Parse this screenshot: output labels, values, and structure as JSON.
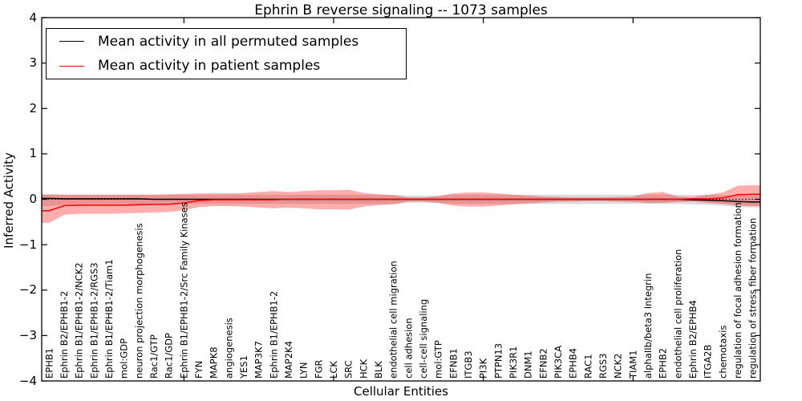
{
  "chart_data": {
    "type": "line",
    "title": "Ephrin B reverse signaling -- 1073 samples",
    "xlabel": "Cellular Entities",
    "ylabel": "Inferred Activity",
    "ylim": [
      -4,
      4
    ],
    "grid": false,
    "legend_position": "upper left",
    "yticks": [
      4,
      3,
      2,
      1,
      0,
      -1,
      -2,
      -3,
      -4
    ],
    "ytick_labels": [
      "4",
      "3",
      "2",
      "1",
      "0",
      "−1",
      "−2",
      "−3",
      "−4"
    ],
    "x_major_tick_indices": [
      9,
      19,
      29,
      39
    ],
    "zero_reference_line": 0,
    "categories": [
      "EPHB1",
      "Ephrin B2/EPHB1-2",
      "Ephrin B1/EPHB1-2/NCK2",
      "Ephrin B1/EPHB1-2/RGS3",
      "Ephrin B1/EPHB1-2/Tiam1",
      "mol:GDP",
      "neuron projection morphogenesis",
      "Rac1/GTP",
      "Rac1/GDP",
      "Ephrin B1/EPHB1-2/Src Family Kinases",
      "FYN",
      "MAPK8",
      "angiogenesis",
      "YES1",
      "MAP3K7",
      "Ephrin B1/EPHB1-2",
      "MAP2K4",
      "LYN",
      "FGR",
      "LCK",
      "SRC",
      "HCK",
      "BLK",
      "endothelial cell migration",
      "cell adhesion",
      "cell-cell signaling",
      "mol:GTP",
      "EFNB1",
      "ITGB3",
      "PI3K",
      "PTPN13",
      "PIK3R1",
      "DNM1",
      "EFNB2",
      "PIK3CA",
      "EPHB4",
      "RAC1",
      "RGS3",
      "NCK2",
      "TIAM1",
      "alphaIIb/beta3 Integrin",
      "EPHB2",
      "endothelial cell proliferation",
      "Ephrin B2/EPHB4",
      "ITGA2B",
      "chemotaxis",
      "regulation of focal adhesion formation",
      "regulation of stress fiber formation"
    ],
    "series": [
      {
        "id": "permuted",
        "name": "Mean activity in all permuted samples",
        "color": "#000000",
        "band_color": "#999999",
        "band_opacity": 0.35,
        "values": [
          0.02,
          0.01,
          0.01,
          0.01,
          0.01,
          0.01,
          0.01,
          0.0,
          0.0,
          0.0,
          0.0,
          0.0,
          0.0,
          0.0,
          0.0,
          0.0,
          0.0,
          0.0,
          0.0,
          0.0,
          0.0,
          0.0,
          0.0,
          0.0,
          0.0,
          0.0,
          0.0,
          0.0,
          0.0,
          0.0,
          0.0,
          0.0,
          0.0,
          0.0,
          0.0,
          0.0,
          0.0,
          0.0,
          0.0,
          0.0,
          0.0,
          0.0,
          0.0,
          -0.01,
          -0.02,
          -0.03,
          -0.05,
          -0.06
        ],
        "upper": [
          0.12,
          0.1,
          0.1,
          0.1,
          0.1,
          0.1,
          0.1,
          0.1,
          0.1,
          0.1,
          0.1,
          0.1,
          0.1,
          0.1,
          0.1,
          0.1,
          0.1,
          0.1,
          0.1,
          0.1,
          0.1,
          0.1,
          0.1,
          0.1,
          0.08,
          0.08,
          0.08,
          0.1,
          0.1,
          0.1,
          0.1,
          0.1,
          0.1,
          0.1,
          0.1,
          0.1,
          0.1,
          0.1,
          0.1,
          0.1,
          0.1,
          0.1,
          0.1,
          0.1,
          0.1,
          0.09,
          0.09,
          0.09
        ],
        "lower": [
          -0.15,
          -0.12,
          -0.12,
          -0.12,
          -0.12,
          -0.12,
          -0.12,
          -0.12,
          -0.12,
          -0.1,
          -0.1,
          -0.1,
          -0.1,
          -0.1,
          -0.1,
          -0.1,
          -0.1,
          -0.1,
          -0.1,
          -0.1,
          -0.1,
          -0.1,
          -0.1,
          -0.1,
          -0.08,
          -0.08,
          -0.08,
          -0.1,
          -0.1,
          -0.1,
          -0.1,
          -0.1,
          -0.1,
          -0.1,
          -0.1,
          -0.1,
          -0.1,
          -0.1,
          -0.1,
          -0.1,
          -0.1,
          -0.1,
          -0.1,
          -0.11,
          -0.12,
          -0.14,
          -0.17,
          -0.18
        ]
      },
      {
        "id": "patient",
        "name": "Mean activity in patient samples",
        "color": "#ff0000",
        "band_color": "#ff0000",
        "band_opacity": 0.32,
        "values": [
          -0.25,
          -0.14,
          -0.13,
          -0.13,
          -0.13,
          -0.13,
          -0.12,
          -0.11,
          -0.11,
          -0.08,
          -0.03,
          -0.01,
          -0.01,
          -0.01,
          -0.01,
          -0.01,
          0.0,
          0.0,
          0.0,
          0.0,
          0.0,
          0.0,
          0.0,
          0.0,
          0.0,
          0.0,
          0.0,
          0.0,
          0.0,
          0.0,
          0.0,
          0.0,
          0.0,
          0.0,
          0.0,
          0.0,
          0.0,
          0.0,
          0.0,
          0.0,
          0.0,
          0.0,
          0.0,
          0.01,
          0.01,
          0.03,
          0.1,
          0.11
        ],
        "upper": [
          0.1,
          0.1,
          0.1,
          0.1,
          0.1,
          0.1,
          0.1,
          0.1,
          0.11,
          0.12,
          0.13,
          0.13,
          0.13,
          0.14,
          0.16,
          0.18,
          0.16,
          0.18,
          0.2,
          0.2,
          0.21,
          0.14,
          0.11,
          0.09,
          0.04,
          0.04,
          0.07,
          0.13,
          0.15,
          0.15,
          0.13,
          0.1,
          0.08,
          0.06,
          0.05,
          0.04,
          0.04,
          0.04,
          0.05,
          0.06,
          0.14,
          0.16,
          0.06,
          0.05,
          0.1,
          0.15,
          0.3,
          0.31
        ],
        "lower": [
          -0.52,
          -0.34,
          -0.32,
          -0.32,
          -0.32,
          -0.31,
          -0.3,
          -0.29,
          -0.28,
          -0.24,
          -0.17,
          -0.15,
          -0.15,
          -0.16,
          -0.18,
          -0.2,
          -0.18,
          -0.2,
          -0.22,
          -0.22,
          -0.23,
          -0.16,
          -0.13,
          -0.11,
          -0.05,
          -0.05,
          -0.08,
          -0.14,
          -0.16,
          -0.16,
          -0.14,
          -0.11,
          -0.09,
          -0.07,
          -0.05,
          -0.05,
          -0.04,
          -0.04,
          -0.05,
          -0.06,
          -0.08,
          -0.08,
          -0.06,
          -0.05,
          -0.08,
          -0.1,
          -0.14,
          -0.15
        ]
      }
    ]
  }
}
